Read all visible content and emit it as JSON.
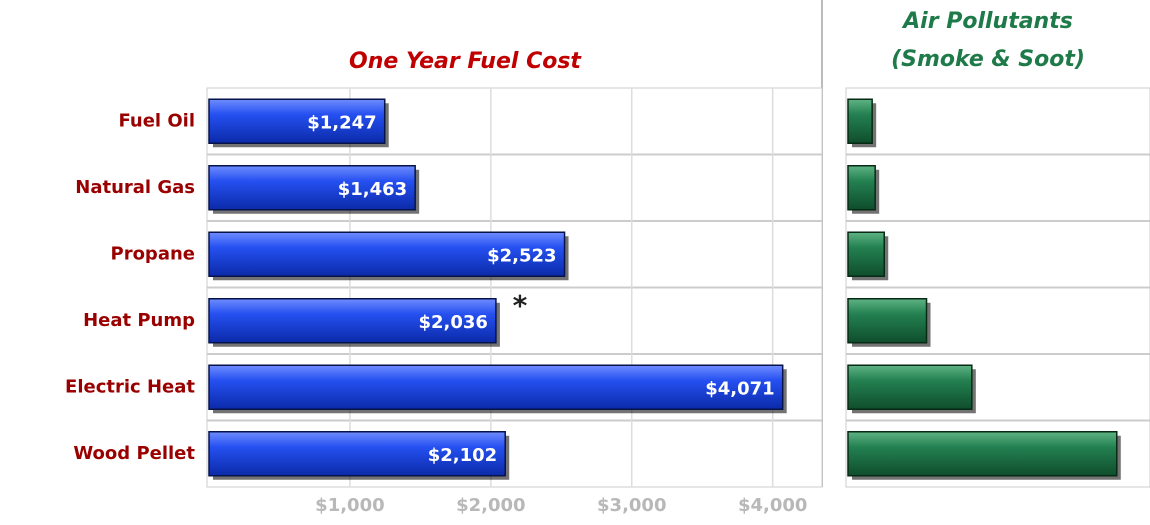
{
  "chart_data": [
    {
      "type": "hbar",
      "title": "One Year Fuel Cost",
      "categories": [
        "Fuel Oil",
        "Natural Gas",
        "Propane",
        "Heat  Pump",
        "Electric Heat",
        "Wood Pellet"
      ],
      "values": [
        1247,
        1463,
        2523,
        2036,
        4071,
        2102
      ],
      "value_labels": [
        "$1,247",
        "$1,463",
        "$2,523",
        "$2,036",
        "$4,071",
        "$2,102"
      ],
      "color": "#1f4fe0",
      "xlim": [
        0,
        4350
      ],
      "xticks": [
        {
          "value": 1000,
          "label": "$1,000"
        },
        {
          "value": 2000,
          "label": "$2,000"
        },
        {
          "value": 3000,
          "label": "$3,000"
        },
        {
          "value": 4000,
          "label": "$4,000"
        }
      ],
      "annotations": [
        {
          "text": "*",
          "category": 3
        }
      ],
      "grid": true
    },
    {
      "type": "hbar",
      "title": [
        "Air Pollutants",
        "(Smoke & Soot)"
      ],
      "values": [
        8,
        9,
        12,
        26,
        41,
        89
      ],
      "color": "#1e7a48",
      "xlim": [
        0,
        100
      ],
      "grid": true
    }
  ]
}
